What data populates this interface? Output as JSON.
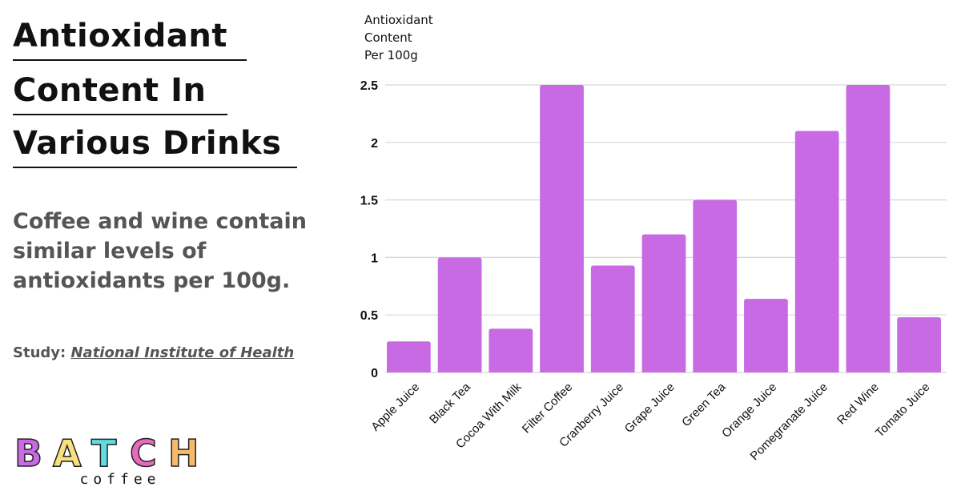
{
  "title_lines": [
    "Antioxidant",
    "Content In",
    "Various Drinks"
  ],
  "subtitle": "Coffee and wine contain similar levels of antioxidants per 100g.",
  "study": {
    "label": "Study:",
    "link": "National Institute of Health"
  },
  "logo": {
    "letters": [
      "B",
      "A",
      "T",
      "C",
      "H"
    ],
    "colors": [
      "#c86ae3",
      "#f7e07e",
      "#5fdde2",
      "#e66bc0",
      "#f7b96a"
    ],
    "sub": "coffee"
  },
  "chart_data": {
    "type": "bar",
    "title": "",
    "ylabel": "Antioxidant Content Per 100g",
    "ylabel_lines": [
      "Antioxidant",
      "Content",
      "Per 100g"
    ],
    "xlabel": "",
    "categories": [
      "Apple Juice",
      "Black Tea",
      "Cocoa With Milk",
      "Filter Coffee",
      "Cranberry Juice",
      "Grape Juice",
      "Green Tea",
      "Orange Juice",
      "Pomegranate Juice",
      "Red Wine",
      "Tomato Juice"
    ],
    "values": [
      0.27,
      1.0,
      0.38,
      2.5,
      0.93,
      1.2,
      1.5,
      0.64,
      2.1,
      2.5,
      0.48
    ],
    "yticks": [
      "0",
      "0.5",
      "1",
      "1.5",
      "2",
      "2.5"
    ],
    "ylim": [
      0,
      2.5
    ],
    "grid": true,
    "bar_color": "#c86ae3"
  }
}
